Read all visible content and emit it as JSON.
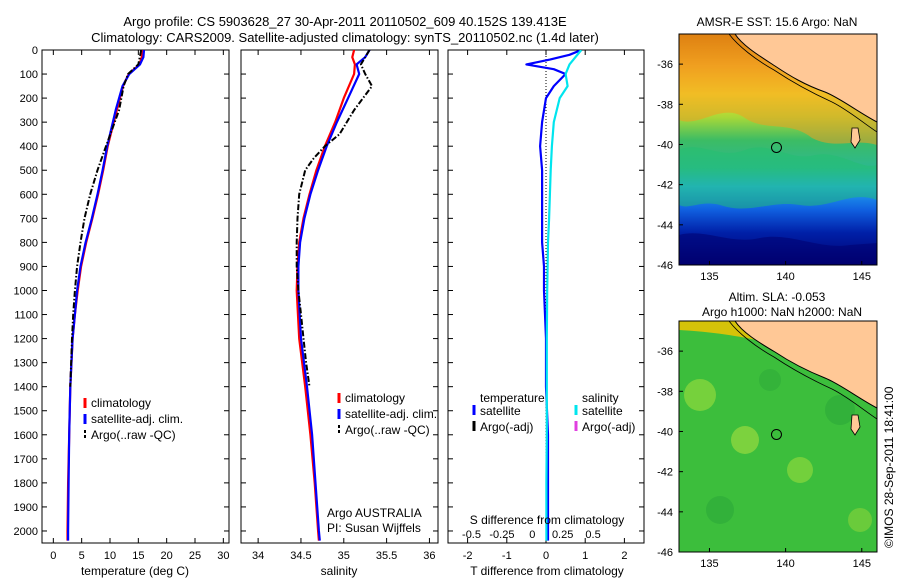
{
  "header": {
    "line1": "Argo profile: CS 5903628_27 30-Apr-2011 20110502_609 40.152S 139.413E",
    "line2": "Climatology: CARS2009. Satellite-adjusted climatology: synTS_20110502.nc (1.4d later)"
  },
  "watermark": "©IMOS 28-Sep-2011 18:41:00",
  "colors": {
    "climatology": "#ff0000",
    "satellite": "#0000ff",
    "argo": "#000000",
    "sal_satellite": "#00e5ee",
    "sal_argo": "#e040e0",
    "land": "#ffc896"
  },
  "chart_data": [
    {
      "type": "line",
      "id": "temperature",
      "xlabel": "temperature (deg C)",
      "ylabel": "",
      "xlim": [
        -2,
        31
      ],
      "ylim": [
        2050,
        0
      ],
      "xticks": [
        "0",
        "5",
        "10",
        "15",
        "20",
        "25",
        "30"
      ],
      "xtick_values": [
        0,
        5,
        10,
        15,
        20,
        25,
        30
      ],
      "yticks": [
        "0",
        "100",
        "200",
        "300",
        "400",
        "500",
        "600",
        "700",
        "800",
        "900",
        "1000",
        "1100",
        "1200",
        "1300",
        "1400",
        "1500",
        "1600",
        "1700",
        "1800",
        "1900",
        "2000"
      ],
      "ytick_values": [
        0,
        100,
        200,
        300,
        400,
        500,
        600,
        700,
        800,
        900,
        1000,
        1100,
        1200,
        1300,
        1400,
        1500,
        1600,
        1700,
        1800,
        1900,
        2000
      ],
      "legend": [
        "climatology",
        "satellite-adj. clim.",
        "Argo(..raw -QC)"
      ],
      "series": [
        {
          "name": "climatology",
          "style": "solid",
          "color": "#ff0000",
          "depth": [
            0,
            30,
            60,
            100,
            150,
            250,
            400,
            500,
            600,
            700,
            800,
            900,
            1000,
            1100,
            1200,
            1400,
            1600,
            1800,
            2000,
            2040
          ],
          "values": [
            15.7,
            15.6,
            15.2,
            13.3,
            12.3,
            11.2,
            9.6,
            8.8,
            7.9,
            6.9,
            5.8,
            4.9,
            4.3,
            3.8,
            3.4,
            3.0,
            2.8,
            2.6,
            2.5,
            2.5
          ]
        },
        {
          "name": "satellite-adj. clim.",
          "style": "solid",
          "color": "#0000ff",
          "depth": [
            0,
            30,
            60,
            100,
            150,
            250,
            400,
            500,
            600,
            700,
            800,
            900,
            1000,
            1100,
            1200,
            1400,
            1600,
            1800,
            2000,
            2040
          ],
          "values": [
            16.0,
            15.9,
            15.3,
            13.4,
            12.2,
            11.0,
            9.5,
            8.7,
            7.8,
            6.8,
            5.7,
            4.8,
            4.2,
            3.8,
            3.4,
            3.0,
            2.8,
            2.7,
            2.6,
            2.6
          ]
        },
        {
          "name": "Argo(..raw -QC)",
          "style": "dashdot",
          "color": "#000000",
          "depth": [
            0,
            60,
            100,
            150,
            250,
            400,
            500,
            600,
            700,
            800,
            900,
            1000,
            1100,
            1200,
            1400
          ],
          "values": [
            15.5,
            15.0,
            13.2,
            12.4,
            11.6,
            9.3,
            7.8,
            6.5,
            5.5,
            4.8,
            4.2,
            3.8,
            3.5,
            3.3,
            3.0
          ]
        }
      ]
    },
    {
      "type": "line",
      "id": "salinity",
      "xlabel": "salinity",
      "ylabel": "",
      "xlim": [
        33.8,
        36.1
      ],
      "ylim": [
        2050,
        0
      ],
      "xticks": [
        "34",
        "34.5",
        "35",
        "35.5",
        "36"
      ],
      "xtick_values": [
        34,
        34.5,
        35,
        35.5,
        36
      ],
      "legend": [
        "climatology",
        "satellite-adj. clim.",
        "Argo(..raw -QC)"
      ],
      "annotation": [
        "Argo AUSTRALIA",
        "PI: Susan Wijffels"
      ],
      "series": [
        {
          "name": "climatology",
          "style": "solid",
          "color": "#ff0000",
          "depth": [
            0,
            30,
            60,
            100,
            200,
            300,
            400,
            500,
            600,
            700,
            800,
            900,
            1000,
            1200,
            1400,
            1600,
            1800,
            2000,
            2040
          ],
          "values": [
            35.12,
            35.1,
            35.13,
            35.12,
            35.0,
            34.9,
            34.78,
            34.68,
            34.6,
            34.53,
            34.48,
            34.46,
            34.45,
            34.48,
            34.55,
            34.61,
            34.66,
            34.7,
            34.71
          ]
        },
        {
          "name": "satellite-adj. clim.",
          "style": "solid",
          "color": "#0000ff",
          "depth": [
            0,
            30,
            60,
            100,
            200,
            300,
            400,
            500,
            600,
            700,
            800,
            900,
            1000,
            1200,
            1400,
            1600,
            1800,
            2000,
            2040
          ],
          "values": [
            35.3,
            35.25,
            35.15,
            35.18,
            35.05,
            34.92,
            34.8,
            34.7,
            34.61,
            34.54,
            34.49,
            34.47,
            34.47,
            34.5,
            34.57,
            34.63,
            34.67,
            34.71,
            34.72
          ]
        },
        {
          "name": "Argo(..raw -QC)",
          "style": "dashdot",
          "color": "#000000",
          "depth": [
            0,
            60,
            100,
            150,
            250,
            350,
            400,
            450,
            500,
            600,
            700,
            800,
            900,
            1000,
            1100,
            1200,
            1300,
            1400
          ],
          "values": [
            35.3,
            35.2,
            35.25,
            35.33,
            35.12,
            34.95,
            34.78,
            34.65,
            34.55,
            34.48,
            34.46,
            34.45,
            34.45,
            34.47,
            34.5,
            34.53,
            34.56,
            34.6
          ]
        }
      ]
    },
    {
      "type": "line",
      "id": "difference",
      "xlabel": "T difference from climatology",
      "top_axis_label": "S difference from climatology",
      "ylabel": "",
      "xlim": [
        -2.5,
        2.5
      ],
      "ylim": [
        2050,
        0
      ],
      "xticks": [
        "-2",
        "-1",
        "0",
        "1",
        "2"
      ],
      "xtick_values": [
        -2,
        -1,
        0,
        1,
        2
      ],
      "top_ticks": [
        "-0.5",
        "-0.25",
        "0",
        "0.25",
        "0.5"
      ],
      "top_tick_values": [
        -0.5,
        -0.25,
        0,
        0.25,
        0.5
      ],
      "legend_left_title": "temperature",
      "legend_right_title": "salinity",
      "legend_left": [
        "satellite",
        "Argo(-adj)"
      ],
      "legend_right": [
        "satellite",
        "Argo(-adj)"
      ],
      "series": [
        {
          "name": "temperature satellite",
          "style": "solid",
          "color": "#0000ff",
          "depth": [
            0,
            20,
            40,
            60,
            80,
            100,
            150,
            200,
            300,
            400,
            500,
            600,
            700,
            800,
            900,
            1000,
            1200,
            1400,
            1600,
            1800,
            2000,
            2040
          ],
          "values": [
            0.9,
            0.6,
            0.1,
            -0.5,
            0.2,
            0.5,
            0.2,
            0.0,
            -0.1,
            -0.15,
            -0.1,
            -0.1,
            -0.1,
            -0.1,
            -0.05,
            -0.05,
            0.0,
            0.0,
            0.05,
            0.05,
            0.05,
            0.05
          ]
        },
        {
          "name": "salinity satellite",
          "style": "solid",
          "color": "#00e5ee",
          "depth": [
            0,
            30,
            60,
            100,
            150,
            200,
            300,
            400,
            500,
            600,
            700,
            800,
            1000,
            1200,
            1400,
            1600,
            1800,
            2000,
            2040
          ],
          "values": [
            0.9,
            0.75,
            0.6,
            0.5,
            0.55,
            0.35,
            0.2,
            0.15,
            0.12,
            0.1,
            0.08,
            0.05,
            0.03,
            0.02,
            0.02,
            0.02,
            0.01,
            0.01,
            0.01
          ]
        }
      ]
    },
    {
      "type": "heatmap",
      "id": "sst_map",
      "title": "AMSR-E SST: 15.6 Argo: NaN",
      "xlim": [
        133,
        146
      ],
      "ylim": [
        -46,
        -34.5
      ],
      "xticks": [
        "135",
        "140",
        "145"
      ],
      "xtick_values": [
        135,
        140,
        145
      ],
      "yticks": [
        "-36",
        "-38",
        "-40",
        "-42",
        "-44",
        "-46"
      ],
      "ytick_values": [
        -36,
        -38,
        -40,
        -42,
        -44,
        -46
      ],
      "marker": {
        "lon": 139.4,
        "lat": -40.15
      }
    },
    {
      "type": "heatmap",
      "id": "sla_map",
      "title_line1": "Altim. SLA: -0.053",
      "title_line2": "Argo h1000: NaN h2000: NaN",
      "xlim": [
        133,
        146
      ],
      "ylim": [
        -46,
        -34.5
      ],
      "xticks": [
        "135",
        "140",
        "145"
      ],
      "xtick_values": [
        135,
        140,
        145
      ],
      "yticks": [
        "-36",
        "-38",
        "-40",
        "-42",
        "-44",
        "-46"
      ],
      "ytick_values": [
        -36,
        -38,
        -40,
        -42,
        -44,
        -46
      ],
      "marker": {
        "lon": 139.4,
        "lat": -40.15
      }
    }
  ]
}
